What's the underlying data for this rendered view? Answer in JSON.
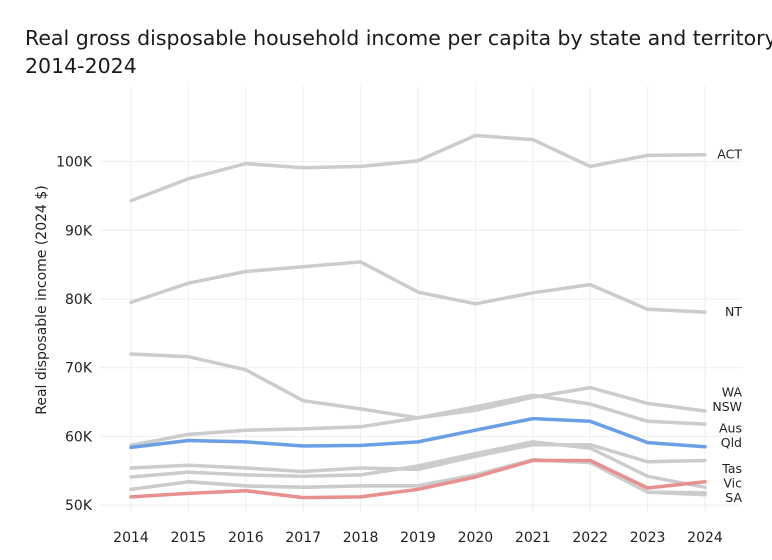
{
  "chart_data": {
    "type": "line",
    "title_lines": [
      "Real gross disposable household income per capita by state and territory,",
      "2014-2024"
    ],
    "xlabel": "",
    "ylabel": "Real disposable income (2024 $)",
    "x": [
      2014,
      2015,
      2016,
      2017,
      2018,
      2019,
      2020,
      2021,
      2022,
      2023,
      2024
    ],
    "x_tick_labels": [
      "2014",
      "2015",
      "2016",
      "2017",
      "2018",
      "2019",
      "2020",
      "2021",
      "2022",
      "2023",
      "2024"
    ],
    "ylim": [
      49000,
      111000
    ],
    "y_ticks": [
      50000,
      60000,
      70000,
      80000,
      90000,
      100000
    ],
    "y_tick_labels": [
      "50K",
      "60K",
      "70K",
      "80K",
      "90K",
      "100K"
    ],
    "grid": true,
    "legend": "direct labels at line ends",
    "series": [
      {
        "name": "ACT",
        "color": "#cccccc",
        "values": [
          94300,
          97500,
          99700,
          99100,
          99300,
          100100,
          103800,
          103200,
          99300,
          100900,
          101000
        ]
      },
      {
        "name": "NT",
        "color": "#cccccc",
        "values": [
          79500,
          82300,
          84000,
          84700,
          85400,
          81000,
          79300,
          80900,
          82100,
          78500,
          78100
        ]
      },
      {
        "name": "WA",
        "color": "#cccccc",
        "values": [
          72000,
          71600,
          69700,
          65200,
          64000,
          62700,
          63800,
          65700,
          67100,
          64800,
          63700
        ]
      },
      {
        "name": "NSW",
        "color": "#cccccc",
        "values": [
          58700,
          60300,
          60900,
          61100,
          61400,
          62700,
          64300,
          66000,
          64700,
          62200,
          61800
        ]
      },
      {
        "name": "Aus",
        "color": "#6a9fe6",
        "values": [
          58400,
          59400,
          59200,
          58600,
          58700,
          59200,
          60900,
          62600,
          62200,
          59100,
          58500
        ]
      },
      {
        "name": "Qld",
        "color": "#cccccc",
        "values": [
          55400,
          55800,
          55400,
          54900,
          55400,
          55200,
          57100,
          58800,
          58800,
          56300,
          56500
        ]
      },
      {
        "name": "Tas",
        "color": "#cccccc",
        "values": [
          54100,
          54800,
          54400,
          54200,
          54400,
          55700,
          57500,
          59200,
          58300,
          54200,
          52600
        ]
      },
      {
        "name": "Vic",
        "color": "#cccccc",
        "values": [
          52300,
          53400,
          52800,
          52600,
          52800,
          52800,
          54400,
          56600,
          56200,
          51900,
          51800
        ]
      },
      {
        "name": "SA",
        "color": "#cccccc",
        "values": [
          52300,
          53400,
          52800,
          52600,
          52800,
          52800,
          54400,
          56600,
          56200,
          51900,
          51500
        ]
      },
      {
        "name": "SA-highlight",
        "label": "",
        "color": "#e88f8f",
        "values": [
          51200,
          51700,
          52100,
          51100,
          51200,
          52300,
          54100,
          56500,
          56500,
          52500,
          53400
        ]
      }
    ]
  }
}
